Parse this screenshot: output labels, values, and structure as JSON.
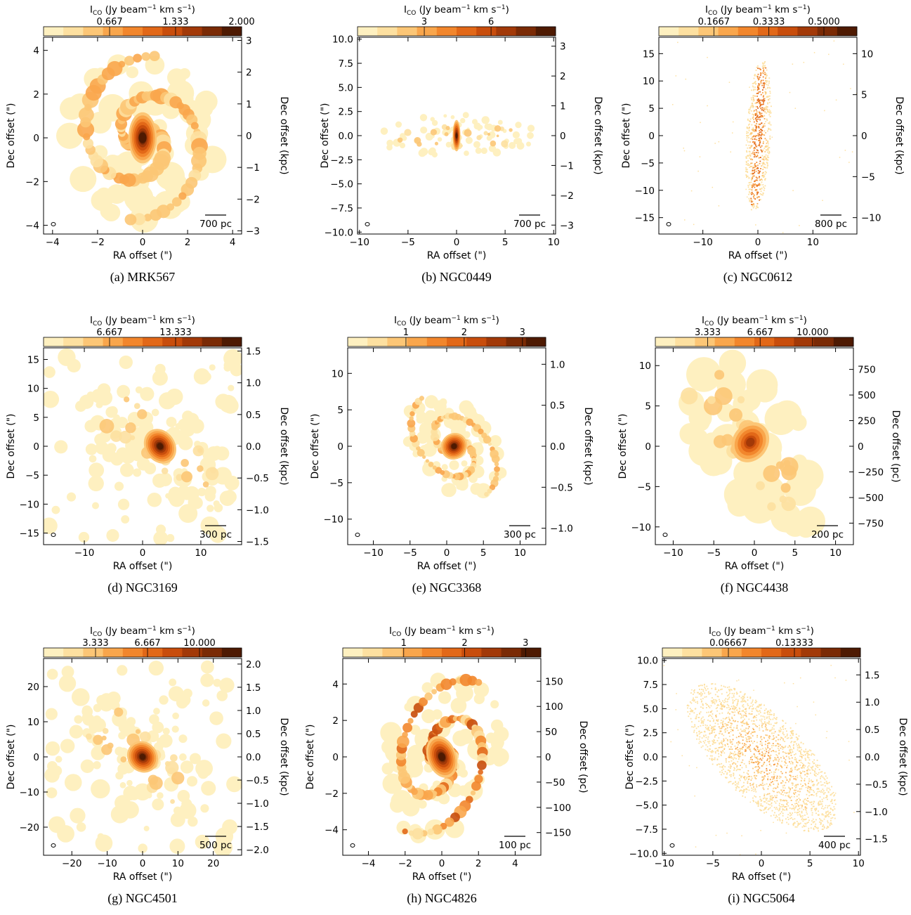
{
  "colors": {
    "ramp": [
      "#fef0c0",
      "#fde0a0",
      "#fcc676",
      "#f9a64c",
      "#f2862c",
      "#e26818",
      "#c84d0c",
      "#a23908",
      "#7a2a05",
      "#4e1a02"
    ],
    "frame": "#000000",
    "beam": "#000000"
  },
  "chart_data": [
    {
      "type": "heatmap",
      "caption": "(a) MRK567",
      "colorbar": {
        "label": "I_CO (Jy beam^-1 km s^-1)",
        "ticks": [
          "0.667",
          "1.333",
          "2.000"
        ],
        "max": 2.0
      },
      "xlabel": "RA offset (\")",
      "ylabel": "Dec offset (\")",
      "ylabel_right": "Dec offset (kpc)",
      "xlim": [
        -4.4,
        4.4
      ],
      "ylim": [
        -4.4,
        4.6
      ],
      "xticks": [
        -4,
        -2,
        0,
        2,
        4
      ],
      "yticks": [
        -4,
        -2,
        0,
        2,
        4
      ],
      "right_ticks": [
        3,
        2,
        1,
        0,
        -1,
        -2,
        -3
      ],
      "right_range": [
        3.1,
        -3.1
      ],
      "scalebar": "700 pc",
      "emission": {
        "shape": "spiral",
        "pa": 0,
        "ra": 3.8,
        "rb": 3.4,
        "peak_x": 0,
        "peak_y": 0
      }
    },
    {
      "type": "heatmap",
      "caption": "(b) NGC0449",
      "colorbar": {
        "label": "I_CO (Jy beam^-1 km s^-1)",
        "ticks": [
          "3",
          "6"
        ],
        "max": 8.9
      },
      "xlabel": "RA offset (\")",
      "ylabel": "Dec offset (\")",
      "ylabel_right": "Dec offset (kpc)",
      "xlim": [
        -10.2,
        10.2
      ],
      "ylim": [
        -10.2,
        10.2
      ],
      "xticks": [
        -10,
        -5,
        0,
        5,
        10
      ],
      "yticks": [
        10.0,
        7.5,
        5.0,
        2.5,
        0.0,
        -2.5,
        -5.0,
        -7.5,
        -10.0
      ],
      "right_ticks": [
        3,
        2,
        1,
        0,
        -1,
        -2,
        -3
      ],
      "right_range": [
        3.3,
        -3.3
      ],
      "scalebar": "700 pc",
      "emission": {
        "shape": "bar",
        "pa": 90,
        "ra": 8.5,
        "rb": 2.2,
        "peak_x": 0,
        "peak_y": 0
      }
    },
    {
      "type": "heatmap",
      "caption": "(c) NGC0612",
      "colorbar": {
        "label": "I_CO (Jy beam^-1 km s^-1)",
        "ticks": [
          "0.1667",
          "0.3333",
          "0.5000"
        ],
        "max": 0.6
      },
      "xlabel": "RA offset (\")",
      "ylabel": "Dec offset (\")",
      "ylabel_right": "Dec offset (kpc)",
      "xlim": [
        -18,
        18
      ],
      "ylim": [
        -18,
        18
      ],
      "xticks": [
        -10,
        0,
        10
      ],
      "yticks": [
        15,
        10,
        5,
        0,
        -5,
        -10,
        -15
      ],
      "right_ticks": [
        10,
        5,
        0,
        -5,
        -10
      ],
      "right_range": [
        12,
        -12
      ],
      "scalebar": "800 pc",
      "emission": {
        "shape": "edge",
        "pa": 3,
        "ra": 14,
        "rb": 2.2,
        "peak_x": 0,
        "peak_y": 0
      }
    },
    {
      "type": "heatmap",
      "caption": "(d) NGC3169",
      "colorbar": {
        "label": "I_CO (Jy beam^-1 km s^-1)",
        "ticks": [
          "6.667",
          "13.333"
        ],
        "max": 20.0
      },
      "xlabel": "RA offset (\")",
      "ylabel": "Dec offset (\")",
      "ylabel_right": "Dec offset (kpc)",
      "xlim": [
        -17,
        17
      ],
      "ylim": [
        -17,
        17
      ],
      "xticks": [
        -10,
        0,
        10
      ],
      "yticks": [
        15,
        10,
        5,
        0,
        -5,
        -10,
        -15
      ],
      "right_ticks": [
        1.5,
        1.0,
        0.5,
        0.0,
        -0.5,
        -1.0,
        -1.5
      ],
      "right_range": [
        1.55,
        -1.55
      ],
      "scalebar": "300 pc",
      "emission": {
        "shape": "patchy",
        "pa": -55,
        "ra": 16,
        "rb": 7,
        "peak_x": 3,
        "peak_y": 0
      }
    },
    {
      "type": "heatmap",
      "caption": "(e) NGC3368",
      "colorbar": {
        "label": "I_CO (Jy beam^-1 km s^-1)",
        "ticks": [
          "1",
          "2",
          "3"
        ],
        "max": 3.4
      },
      "xlabel": "RA offset (\")",
      "ylabel": "Dec offset (\")",
      "ylabel_right": "Dec offset (kpc)",
      "xlim": [
        -13.5,
        13.5
      ],
      "ylim": [
        -13.5,
        13.5
      ],
      "xticks": [
        -10,
        -5,
        0,
        5,
        10
      ],
      "yticks": [
        10,
        5,
        0,
        -5,
        -10
      ],
      "right_ticks": [
        1.0,
        0.5,
        0.0,
        -0.5,
        -1.0
      ],
      "right_range": [
        1.2,
        -1.2
      ],
      "scalebar": "300 pc",
      "emission": {
        "shape": "spiral",
        "pa": -40,
        "ra": 8,
        "rb": 5.5,
        "peak_x": 1,
        "peak_y": 0
      }
    },
    {
      "type": "heatmap",
      "caption": "(f) NGC4438",
      "colorbar": {
        "label": "I_CO (Jy beam^-1 km s^-1)",
        "ticks": [
          "3.333",
          "6.667",
          "10.000"
        ],
        "max": 12.6
      },
      "xlabel": "RA offset (\")",
      "ylabel": "Dec offset (\")",
      "ylabel_right": "Dec offset (pc)",
      "xlim": [
        -12.2,
        12.2
      ],
      "ylim": [
        -12.2,
        12.2
      ],
      "xticks": [
        -10,
        -5,
        0,
        5,
        10
      ],
      "yticks": [
        10,
        5,
        0,
        -5,
        -10
      ],
      "right_ticks": [
        750,
        500,
        250,
        0,
        -250,
        -500,
        -750
      ],
      "right_range": [
        960,
        -960
      ],
      "scalebar": "200 pc",
      "emission": {
        "shape": "broad",
        "pa": -35,
        "ra": 13,
        "rb": 6.5,
        "peak_x": -0.5,
        "peak_y": 0.5
      }
    },
    {
      "type": "heatmap",
      "caption": "(g) NGC4501",
      "colorbar": {
        "label": "I_CO (Jy beam^-1 km s^-1)",
        "ticks": [
          "3.333",
          "6.667",
          "10.000"
        ],
        "max": 12.7
      },
      "xlabel": "RA offset (\")",
      "ylabel": "Dec offset (\")",
      "ylabel_right": "Dec offset (kpc)",
      "xlim": [
        -28,
        28
      ],
      "ylim": [
        -28,
        28
      ],
      "xticks": [
        -20,
        -10,
        0,
        10,
        20
      ],
      "yticks": [
        20,
        10,
        0,
        -10,
        -20
      ],
      "right_ticks": [
        2.0,
        1.5,
        1.0,
        0.5,
        0.0,
        -0.5,
        -1.0,
        -1.5,
        -2.0
      ],
      "right_range": [
        2.12,
        -2.12
      ],
      "scalebar": "500 pc",
      "emission": {
        "shape": "patchy",
        "pa": -50,
        "ra": 24,
        "rb": 11,
        "peak_x": 0,
        "peak_y": 0
      }
    },
    {
      "type": "heatmap",
      "caption": "(h) NGC4826",
      "colorbar": {
        "label": "I_CO (Jy beam^-1 km s^-1)",
        "ticks": [
          "1",
          "2",
          "3"
        ],
        "max": 3.25
      },
      "xlabel": "RA offset (\")",
      "ylabel": "Dec offset (\")",
      "ylabel_right": "Dec offset (pc)",
      "xlim": [
        -5.4,
        5.4
      ],
      "ylim": [
        -5.4,
        5.4
      ],
      "xticks": [
        -4,
        -2,
        0,
        2,
        4
      ],
      "yticks": [
        4,
        2,
        0,
        -2,
        -4
      ],
      "right_ticks": [
        150,
        100,
        50,
        0,
        -50,
        -100,
        -150
      ],
      "right_range": [
        195,
        -195
      ],
      "scalebar": "100 pc",
      "emission": {
        "shape": "spiral",
        "pa": 20,
        "ra": 4.6,
        "rb": 3.1,
        "peak_x": 0,
        "peak_y": 0
      }
    },
    {
      "type": "heatmap",
      "caption": "(i) NGC5064",
      "colorbar": {
        "label": "I_CO (Jy beam^-1 km s^-1)",
        "ticks": [
          "0.06667",
          "0.13333"
        ],
        "max": 0.2
      },
      "xlabel": "RA offset (\")",
      "ylabel": "Dec offset (\")",
      "ylabel_right": "Dec offset (kpc)",
      "xlim": [
        -10.2,
        10.2
      ],
      "ylim": [
        -10.2,
        10.2
      ],
      "xticks": [
        -10,
        -5,
        0,
        5,
        10
      ],
      "yticks": [
        10.0,
        7.5,
        5.0,
        2.5,
        0.0,
        -2.5,
        -5.0,
        -7.5,
        -10.0
      ],
      "right_ticks": [
        1.5,
        1.0,
        0.5,
        0.0,
        -0.5,
        -1.0,
        -1.5
      ],
      "right_range": [
        1.8,
        -1.8
      ],
      "scalebar": "400 pc",
      "emission": {
        "shape": "dots",
        "pa": -45,
        "ra": 10,
        "rb": 4.3,
        "peak_x": 0,
        "peak_y": 0
      }
    }
  ]
}
